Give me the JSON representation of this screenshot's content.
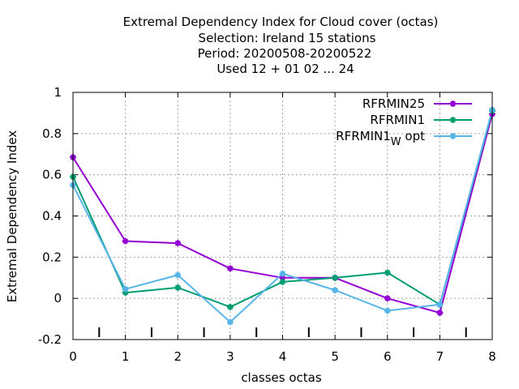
{
  "chart_data": {
    "type": "line",
    "title_lines": [
      "Extremal Dependency Index  for Cloud cover (octas)",
      "Selection: Ireland     15 stations",
      "Period: 20200508-20200522",
      "Used  12 + 01 02 ... 24"
    ],
    "xlabel": "classes octas",
    "ylabel": "Extremal Dependency Index",
    "xlim": [
      0,
      8
    ],
    "ylim": [
      -0.2,
      1
    ],
    "x_ticks": [
      0,
      1,
      2,
      3,
      4,
      5,
      6,
      7,
      8
    ],
    "y_ticks": [
      -0.2,
      0,
      0.2,
      0.4,
      0.6,
      0.8,
      1
    ],
    "y_tick_labels": [
      "-0.2",
      "0",
      "0.2",
      "0.4",
      "0.6",
      "0.8",
      "1"
    ],
    "minor_x_ticks": [
      0.5,
      1.5,
      2.5,
      3.5,
      4.5,
      5.5,
      6.5,
      7.5
    ],
    "grid": true,
    "legend_position": "top-right",
    "x": [
      0,
      1,
      2,
      3,
      4,
      5,
      6,
      7,
      8
    ],
    "series": [
      {
        "name": "RFRMIN25",
        "legend_main": "RFRMIN25",
        "legend_sub": "",
        "legend_tail": "",
        "color": "#9400d3",
        "values": [
          0.685,
          0.278,
          0.268,
          0.145,
          0.1,
          0.1,
          0.0,
          -0.07,
          0.895
        ]
      },
      {
        "name": "RFRMIN1",
        "legend_main": "RFRMIN1",
        "legend_sub": "",
        "legend_tail": "",
        "color": "#009e73",
        "values": [
          0.59,
          0.028,
          0.052,
          -0.042,
          0.08,
          0.1,
          0.125,
          -0.03,
          0.91
        ]
      },
      {
        "name": "RFRMIN1_W opt",
        "legend_main": "RFRMIN1",
        "legend_sub": "W",
        "legend_tail": " opt",
        "color": "#56b4e9",
        "values": [
          0.55,
          0.045,
          0.113,
          -0.115,
          0.12,
          0.04,
          -0.06,
          -0.03,
          0.915
        ]
      }
    ]
  }
}
